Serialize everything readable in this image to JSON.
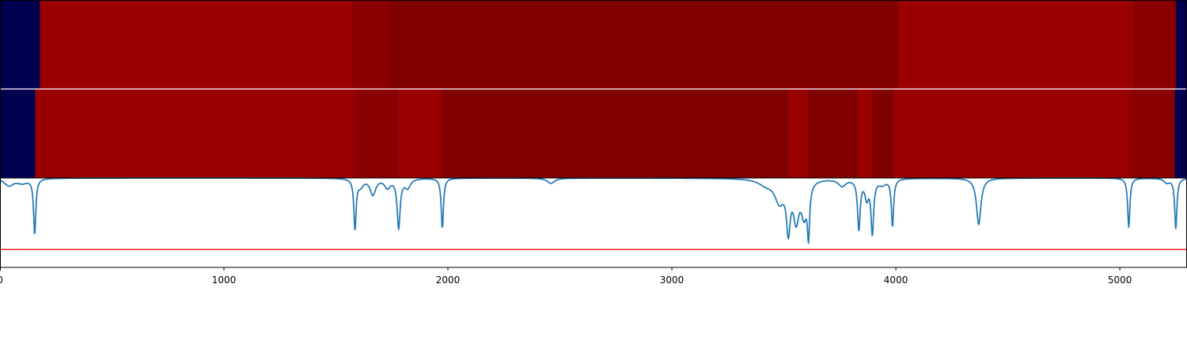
{
  "chart_data": {
    "type": "heatmap",
    "xlim": [
      0,
      5300
    ],
    "x_ticks": [
      0,
      1000,
      2000,
      3000,
      4000,
      5000
    ],
    "x_tick_labels": [
      "0",
      "1000",
      "2000",
      "3000",
      "4000",
      "5000"
    ],
    "colors": {
      "low": "#000050",
      "mid_dark": "#800000",
      "mid_bright": "#9b0000",
      "line": "#1f77b4",
      "threshold": "#e8141c",
      "separator": "#ffffff",
      "axis": "#000000"
    },
    "heatmap_rows": [
      {
        "segments": [
          {
            "start": 0,
            "end": 178,
            "level": "low"
          },
          {
            "start": 178,
            "end": 1570,
            "level": "mid_bright"
          },
          {
            "start": 1570,
            "end": 1740,
            "level": "mid_darker"
          },
          {
            "start": 1740,
            "end": 4010,
            "level": "mid_dark"
          },
          {
            "start": 4010,
            "end": 5060,
            "level": "mid_bright"
          },
          {
            "start": 5060,
            "end": 5250,
            "level": "mid_darker"
          },
          {
            "start": 5250,
            "end": 5300,
            "level": "low"
          }
        ]
      },
      {
        "segments": [
          {
            "start": 0,
            "end": 157,
            "level": "low"
          },
          {
            "start": 157,
            "end": 1585,
            "level": "mid_bright"
          },
          {
            "start": 1585,
            "end": 1780,
            "level": "mid_darker"
          },
          {
            "start": 1780,
            "end": 1970,
            "level": "mid_bright"
          },
          {
            "start": 1970,
            "end": 3520,
            "level": "mid_dark"
          },
          {
            "start": 3520,
            "end": 3605,
            "level": "mid_bright"
          },
          {
            "start": 3605,
            "end": 3830,
            "level": "mid_dark"
          },
          {
            "start": 3830,
            "end": 3895,
            "level": "mid_bright"
          },
          {
            "start": 3895,
            "end": 3990,
            "level": "mid_dark"
          },
          {
            "start": 3990,
            "end": 5050,
            "level": "mid_bright"
          },
          {
            "start": 5050,
            "end": 5245,
            "level": "mid_darker"
          },
          {
            "start": 5245,
            "end": 5300,
            "level": "low"
          }
        ]
      }
    ],
    "line_series": {
      "ylim": [
        0,
        1
      ],
      "baseline": 1,
      "dips": [
        {
          "x": 40,
          "depth": 0.08,
          "width": 25
        },
        {
          "x": 100,
          "depth": 0.05,
          "width": 30
        },
        {
          "x": 155,
          "depth": 0.62,
          "width": 6
        },
        {
          "x": 1585,
          "depth": 0.56,
          "width": 6
        },
        {
          "x": 1610,
          "depth": 0.08,
          "width": 15
        },
        {
          "x": 1665,
          "depth": 0.18,
          "width": 15
        },
        {
          "x": 1730,
          "depth": 0.1,
          "width": 15
        },
        {
          "x": 1780,
          "depth": 0.55,
          "width": 8
        },
        {
          "x": 1820,
          "depth": 0.1,
          "width": 15
        },
        {
          "x": 1975,
          "depth": 0.56,
          "width": 6
        },
        {
          "x": 2460,
          "depth": 0.06,
          "width": 20
        },
        {
          "x": 3420,
          "depth": 0.06,
          "width": 40
        },
        {
          "x": 3480,
          "depth": 0.24,
          "width": 25
        },
        {
          "x": 3520,
          "depth": 0.52,
          "width": 10
        },
        {
          "x": 3555,
          "depth": 0.42,
          "width": 15
        },
        {
          "x": 3590,
          "depth": 0.36,
          "width": 15
        },
        {
          "x": 3610,
          "depth": 0.55,
          "width": 6
        },
        {
          "x": 3760,
          "depth": 0.08,
          "width": 20
        },
        {
          "x": 3835,
          "depth": 0.56,
          "width": 7
        },
        {
          "x": 3870,
          "depth": 0.2,
          "width": 10
        },
        {
          "x": 3895,
          "depth": 0.6,
          "width": 7
        },
        {
          "x": 3940,
          "depth": 0.06,
          "width": 20
        },
        {
          "x": 3985,
          "depth": 0.53,
          "width": 6
        },
        {
          "x": 4370,
          "depth": 0.52,
          "width": 12
        },
        {
          "x": 5040,
          "depth": 0.55,
          "width": 6
        },
        {
          "x": 5250,
          "depth": 0.56,
          "width": 6
        },
        {
          "x": 5210,
          "depth": 0.05,
          "width": 15
        }
      ]
    },
    "threshold_line": {
      "y": 0.2
    }
  }
}
